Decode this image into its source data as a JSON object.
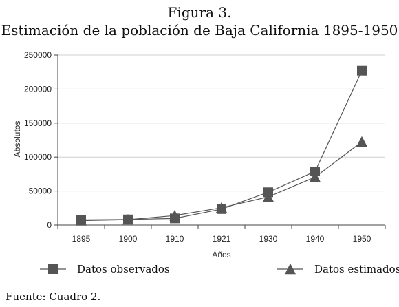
{
  "figure": {
    "label": "Figura 3.",
    "title": "Estimación de la población de Baja California 1895-1950",
    "source": "Fuente:  Cuadro 2."
  },
  "chart_data": {
    "type": "line",
    "title": "Estimación de la población de Baja California 1895-1950",
    "xlabel": "Años",
    "ylabel": "Absolutos",
    "categories": [
      "1895",
      "1900",
      "1910",
      "1921",
      "1930",
      "1940",
      "1950"
    ],
    "ylim": [
      0,
      250000
    ],
    "yticks": [
      0,
      50000,
      100000,
      150000,
      200000,
      250000
    ],
    "ytick_labels": [
      "0",
      "50000",
      "100000",
      "150000",
      "200000",
      "250000"
    ],
    "grid": true,
    "legend_position": "bottom",
    "series": [
      {
        "name": "Datos observados",
        "marker": "square",
        "color": "#555555",
        "values": [
          7600,
          8300,
          9760,
          23500,
          48300,
          78900,
          227000
        ]
      },
      {
        "name": "Datos estimados",
        "marker": "triangle",
        "color": "#555555",
        "values": [
          6500,
          8000,
          14000,
          25500,
          41500,
          70500,
          122500
        ]
      }
    ]
  }
}
